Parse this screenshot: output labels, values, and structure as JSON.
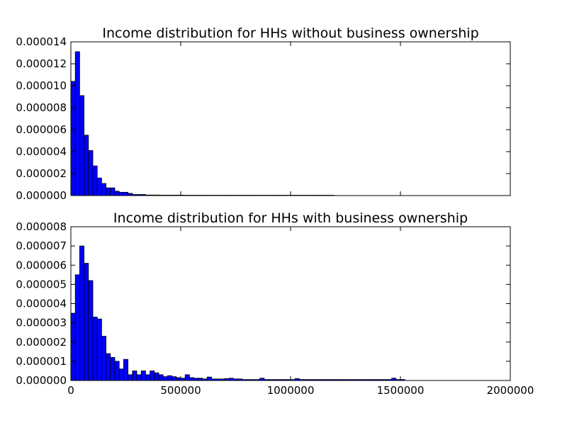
{
  "chart_data": [
    {
      "type": "bar",
      "title": "Income distribution for HHs without business ownership",
      "xlim": [
        0,
        2000000
      ],
      "ylim": [
        0,
        1.4e-05
      ],
      "bin_width": 20000,
      "bar_color": "#0000ff",
      "yticks": [
        "0.000000",
        "0.000002",
        "0.000004",
        "0.000006",
        "0.000008",
        "0.000010",
        "0.000012",
        "0.000014"
      ],
      "ytick_values": [
        0,
        2e-06,
        4e-06,
        6e-06,
        8e-06,
        1e-05,
        1.2e-05,
        1.4e-05
      ],
      "xticks": [],
      "xtick_values": [
        0,
        500000,
        1000000,
        1500000,
        2000000
      ],
      "values": [
        1.04e-05,
        1.31e-05,
        9.1e-06,
        5.5e-06,
        4.1e-06,
        2.7e-06,
        1.6e-06,
        1.1e-06,
        7e-07,
        7e-07,
        4e-07,
        3e-07,
        3e-07,
        2e-07,
        1e-07,
        1e-07,
        1e-07,
        5e-08,
        5e-08,
        5e-08,
        4e-08,
        4e-08,
        4e-08,
        4e-08,
        4e-08,
        4e-08,
        3e-08,
        3e-08,
        3e-08,
        3e-08,
        3e-08,
        3e-08,
        3e-08,
        3e-08,
        3e-08,
        3e-08,
        3e-08,
        3e-08,
        3e-08,
        3e-08,
        3e-08,
        3e-08,
        3e-08,
        3e-08,
        3e-08,
        3e-08,
        3e-08,
        3e-08,
        3e-08,
        3e-08,
        3e-08,
        3e-08,
        3e-08,
        3e-08,
        3e-08,
        3e-08,
        3e-08,
        3e-08,
        3e-08,
        3e-08,
        0,
        0,
        0,
        0,
        0,
        0,
        0,
        0,
        0,
        0,
        0,
        0,
        0,
        0,
        0,
        0,
        0,
        0,
        0,
        0,
        0,
        0,
        0,
        0,
        0,
        0,
        0,
        0,
        0,
        0,
        0,
        0,
        0,
        0,
        0,
        0,
        0,
        0,
        0,
        0
      ]
    },
    {
      "type": "bar",
      "title": "Income distribution for HHs with business ownership",
      "xlim": [
        0,
        2000000
      ],
      "ylim": [
        0,
        8e-06
      ],
      "bin_width": 20000,
      "bar_color": "#0000ff",
      "yticks": [
        "0.000000",
        "0.000001",
        "0.000002",
        "0.000003",
        "0.000004",
        "0.000005",
        "0.000006",
        "0.000007",
        "0.000008"
      ],
      "ytick_values": [
        0,
        1e-06,
        2e-06,
        3e-06,
        4e-06,
        5e-06,
        6e-06,
        7e-06,
        8e-06
      ],
      "xticks": [
        "0",
        "500000",
        "1000000",
        "1500000",
        "2000000"
      ],
      "xtick_values": [
        0,
        500000,
        1000000,
        1500000,
        2000000
      ],
      "values": [
        3.5e-06,
        5.5e-06,
        7e-06,
        6.1e-06,
        5.2e-06,
        3.3e-06,
        3.2e-06,
        2.3e-06,
        1.4e-06,
        1.2e-06,
        1e-06,
        6e-07,
        1.1e-06,
        3e-07,
        5e-07,
        3e-07,
        5e-07,
        3e-07,
        5e-07,
        4e-07,
        3e-07,
        2e-07,
        2.5e-07,
        2e-07,
        1.5e-07,
        1.2e-07,
        3e-07,
        1.5e-07,
        1.2e-07,
        1.2e-07,
        8e-08,
        1.8e-07,
        8e-08,
        8e-08,
        8e-08,
        1e-07,
        1.2e-07,
        8e-08,
        8e-08,
        5e-08,
        5e-08,
        5e-08,
        5e-08,
        1.2e-07,
        5e-08,
        5e-08,
        5e-08,
        5e-08,
        5e-08,
        5e-08,
        5e-08,
        1e-07,
        5e-08,
        5e-08,
        5e-08,
        5e-08,
        5e-08,
        5e-08,
        5e-08,
        5e-08,
        5e-08,
        5e-08,
        5e-08,
        5e-08,
        5e-08,
        5e-08,
        5e-08,
        5e-08,
        5e-08,
        5e-08,
        5e-08,
        5e-08,
        5e-08,
        1.2e-07,
        5e-08,
        5e-08,
        0,
        0,
        0,
        0,
        0,
        0,
        0,
        0,
        0,
        0,
        0,
        0,
        0,
        0,
        0,
        0,
        0,
        0,
        0,
        0,
        0,
        0,
        0,
        0
      ]
    }
  ]
}
